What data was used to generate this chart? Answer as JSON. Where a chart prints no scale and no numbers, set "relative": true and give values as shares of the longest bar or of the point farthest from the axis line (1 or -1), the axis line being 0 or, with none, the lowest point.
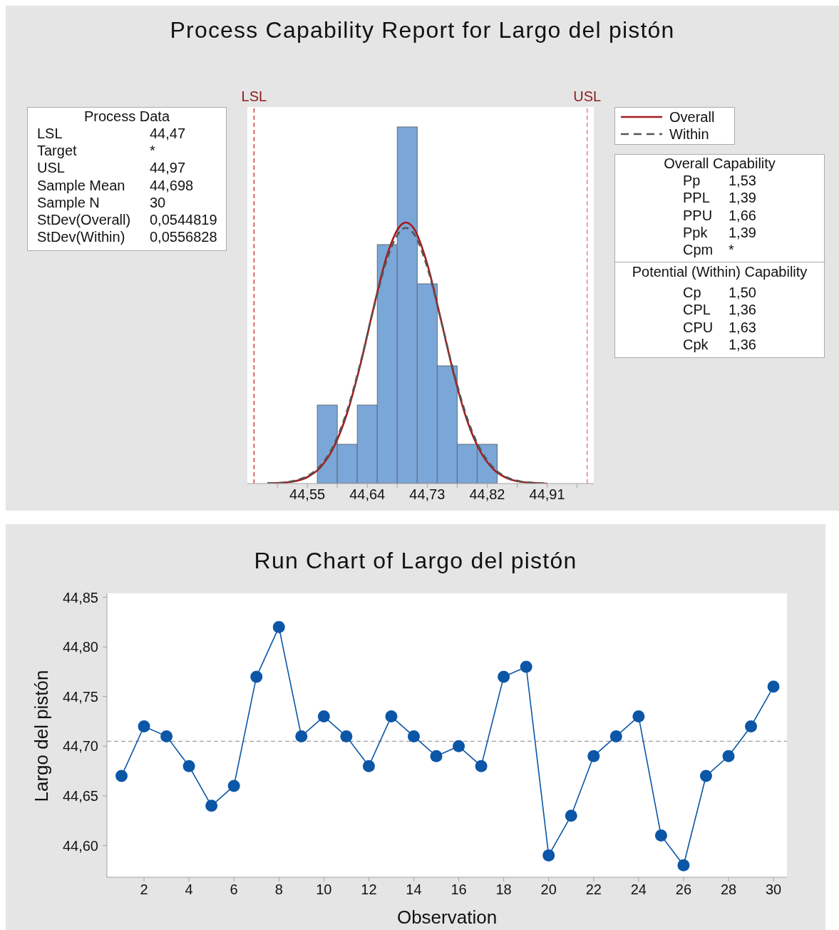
{
  "chart_data": [
    {
      "type": "histogram",
      "title": "Process Capability Report for Largo del pistón",
      "bins": [
        44.565,
        44.595,
        44.625,
        44.655,
        44.685,
        44.715,
        44.745,
        44.775,
        44.805,
        44.835
      ],
      "values": [
        0.22,
        0.11,
        0.22,
        0.67,
        1,
        0.56,
        0.33,
        0.11,
        0.11
      ],
      "relative": true,
      "color": "#7ba6d8",
      "series": [
        {
          "type": "line",
          "name": "Overall",
          "color": "#a51c1c",
          "line_style": "solid",
          "x": [
            44.49,
            44.51,
            44.53,
            44.55,
            44.57,
            44.59,
            44.61,
            44.63,
            44.65,
            44.67,
            44.69,
            44.698,
            44.71,
            44.73,
            44.75,
            44.77,
            44.79,
            44.81,
            44.83,
            44.85,
            44.87,
            44.89,
            44.91
          ],
          "values": [
            0.001,
            0.002,
            0.006,
            0.018,
            0.046,
            0.103,
            0.199,
            0.336,
            0.497,
            0.642,
            0.724,
            0.732,
            0.715,
            0.616,
            0.464,
            0.306,
            0.176,
            0.089,
            0.039,
            0.015,
            0.005,
            0.002,
            0
          ]
        },
        {
          "type": "line",
          "name": "Within",
          "color": "#555555",
          "line_style": "dashed",
          "x": [
            44.49,
            44.51,
            44.53,
            44.55,
            44.57,
            44.59,
            44.61,
            44.63,
            44.65,
            44.67,
            44.69,
            44.698,
            44.71,
            44.73,
            44.75,
            44.77,
            44.79,
            44.81,
            44.83,
            44.85,
            44.87,
            44.89,
            44.91
          ],
          "values": [
            0.001,
            0.002,
            0.008,
            0.021,
            0.051,
            0.109,
            0.206,
            0.34,
            0.494,
            0.631,
            0.709,
            0.717,
            0.7,
            0.607,
            0.463,
            0.311,
            0.183,
            0.095,
            0.043,
            0.017,
            0.006,
            0.002,
            0.001
          ]
        }
      ],
      "xlim": [
        44.46,
        44.98
      ],
      "xticks": [
        {
          "value": 44.505,
          "label": null
        },
        {
          "value": 44.55,
          "label": "44,55"
        },
        {
          "value": 44.595,
          "label": null
        },
        {
          "value": 44.64,
          "label": "44,64"
        },
        {
          "value": 44.685,
          "label": null
        },
        {
          "value": 44.73,
          "label": "44,73"
        },
        {
          "value": 44.775,
          "label": null
        },
        {
          "value": 44.82,
          "label": "44,82"
        },
        {
          "value": 44.865,
          "label": null
        },
        {
          "value": 44.91,
          "label": "44,91"
        },
        {
          "value": 44.955,
          "label": null
        }
      ],
      "ref_lines": [
        {
          "axis": "x",
          "value": 44.47,
          "label": "LSL",
          "color": "#c62828",
          "line_style": "dashed"
        },
        {
          "axis": "x",
          "value": 44.97,
          "label": "USL",
          "color": "#e57373",
          "line_style": "dashed"
        }
      ],
      "legend": "top right"
    },
    {
      "type": "other",
      "title": "Process Data",
      "annotations": [
        "LSL",
        "44,47",
        "Target",
        "*",
        "USL",
        "44,97",
        "Sample Mean",
        "44,698",
        "Sample N",
        "30",
        "StDev(Overall)",
        "0,0544819",
        "StDev(Within)",
        "0,0556828"
      ]
    },
    {
      "type": "other",
      "title": "Overall Capability",
      "annotations": [
        "Pp",
        "1,53",
        "PPL",
        "1,39",
        "PPU",
        "1,66",
        "Ppk",
        "1,39",
        "Cpm",
        "*"
      ]
    },
    {
      "type": "other",
      "title": "Potential (Within) Capability",
      "annotations": [
        "Cp",
        "1,50",
        "CPL",
        "1,36",
        "CPU",
        "1,63",
        "Cpk",
        "1,36"
      ]
    },
    {
      "type": "line",
      "title": "Run Chart of Largo del pistón",
      "xlabel": "Observation",
      "ylabel": "Largo del pistón",
      "x": [
        1,
        2,
        3,
        4,
        5,
        6,
        7,
        8,
        9,
        10,
        11,
        12,
        13,
        14,
        15,
        16,
        17,
        18,
        19,
        20,
        21,
        22,
        23,
        24,
        25,
        26,
        27,
        28,
        29,
        30
      ],
      "values": [
        44.67,
        44.72,
        44.71,
        44.68,
        44.64,
        44.66,
        44.77,
        44.82,
        44.71,
        44.73,
        44.71,
        44.68,
        44.73,
        44.71,
        44.69,
        44.7,
        44.68,
        44.77,
        44.78,
        44.59,
        44.63,
        44.69,
        44.71,
        44.73,
        44.61,
        44.58,
        44.67,
        44.69,
        44.72,
        44.76
      ],
      "color": "#0b56a6",
      "marker": "circle",
      "xlim": [
        0.35,
        30.6
      ],
      "xticks": [
        2,
        4,
        6,
        8,
        10,
        12,
        14,
        16,
        18,
        20,
        22,
        24,
        26,
        28,
        30
      ],
      "ylim": [
        44.568,
        44.854
      ],
      "yticks": [
        {
          "value": 44.6,
          "label": "44,60"
        },
        {
          "value": 44.65,
          "label": "44,65"
        },
        {
          "value": 44.7,
          "label": "44,70"
        },
        {
          "value": 44.75,
          "label": "44,75"
        },
        {
          "value": 44.8,
          "label": "44,80"
        },
        {
          "value": 44.85,
          "label": "44,85"
        }
      ],
      "ref_lines": [
        {
          "axis": "y",
          "value": 44.705,
          "color": "#9e9e9e",
          "line_style": "dashed"
        }
      ]
    }
  ]
}
